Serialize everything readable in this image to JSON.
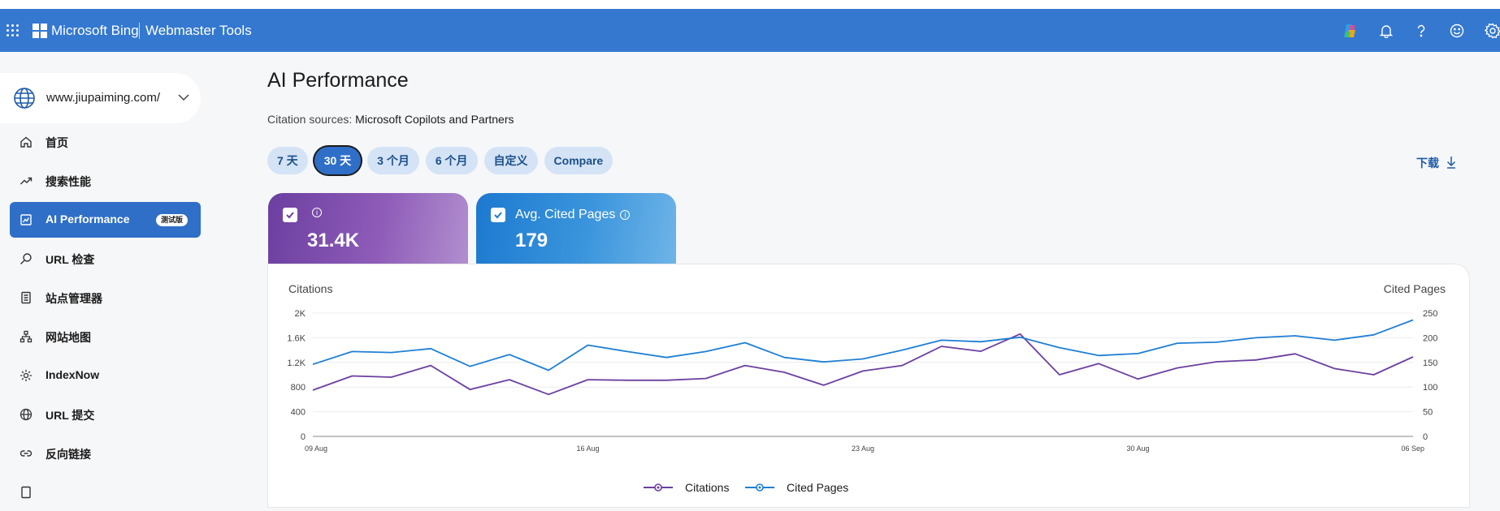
{
  "header": {
    "brand": "Microsoft Bing",
    "product": "Webmaster Tools",
    "icons": [
      "copilot-icon",
      "bell-icon",
      "help-icon",
      "feedback-icon",
      "gear-icon"
    ]
  },
  "sidebar": {
    "site": "www.jiupaiming.com/",
    "items": [
      {
        "label": "首页",
        "icon": "home-icon"
      },
      {
        "label": "搜索性能",
        "icon": "trend-icon"
      },
      {
        "label": "AI Performance",
        "icon": "ai-chart-icon",
        "badge": "测试版",
        "active": true
      },
      {
        "label": "URL 检查",
        "icon": "search-icon"
      },
      {
        "label": "站点管理器",
        "icon": "document-icon"
      },
      {
        "label": "网站地图",
        "icon": "sitemap-icon"
      },
      {
        "label": "IndexNow",
        "icon": "indexnow-icon"
      },
      {
        "label": "URL 提交",
        "icon": "globe-icon"
      },
      {
        "label": "反向链接",
        "icon": "link-icon"
      }
    ]
  },
  "main": {
    "title": "AI Performance",
    "citation_label": "Citation sources:",
    "citation_value": "Microsoft Copilots and Partners",
    "ranges": [
      {
        "label": "7 天",
        "active": false
      },
      {
        "label": "30 天",
        "active": true
      },
      {
        "label": "3 个月",
        "active": false
      },
      {
        "label": "6 个月",
        "active": false
      },
      {
        "label": "自定义",
        "active": false
      },
      {
        "label": "Compare",
        "active": false
      }
    ],
    "download_label": "下载",
    "cards": [
      {
        "label": "",
        "value": "31.4K",
        "checked": true
      },
      {
        "label": "Avg. Cited Pages",
        "value": "179",
        "checked": true
      }
    ]
  },
  "colors": {
    "header": "#3478d0",
    "citations": "#6b3fa0",
    "cited_pages": "#1f7fd4",
    "active_nav": "#2f6fc7"
  },
  "chart_data": {
    "type": "line",
    "left_axis_label": "Citations",
    "right_axis_label": "Cited Pages",
    "y_left_ticks": [
      "0",
      "400",
      "800",
      "1.2K",
      "1.6K",
      "2K"
    ],
    "y_right_ticks": [
      "0",
      "50",
      "100",
      "150",
      "200",
      "250"
    ],
    "ylim_left": [
      0,
      2000
    ],
    "ylim_right": [
      0,
      250
    ],
    "x_tick_labels": [
      "09 Aug",
      "16 Aug",
      "23 Aug",
      "30 Aug",
      "06 Sep"
    ],
    "x": [
      "09 Aug",
      "10 Aug",
      "11 Aug",
      "12 Aug",
      "13 Aug",
      "14 Aug",
      "15 Aug",
      "16 Aug",
      "17 Aug",
      "18 Aug",
      "19 Aug",
      "20 Aug",
      "21 Aug",
      "22 Aug",
      "23 Aug",
      "24 Aug",
      "25 Aug",
      "26 Aug",
      "27 Aug",
      "28 Aug",
      "29 Aug",
      "30 Aug",
      "31 Aug",
      "01 Sep",
      "02 Sep",
      "03 Sep",
      "04 Sep",
      "05 Sep",
      "06 Sep"
    ],
    "grid": true,
    "legend": "bottom",
    "series": [
      {
        "name": "Citations",
        "axis": "left",
        "values": [
          750,
          980,
          960,
          1150,
          760,
          920,
          680,
          920,
          910,
          910,
          940,
          1150,
          1040,
          830,
          1060,
          1150,
          1460,
          1380,
          1660,
          1000,
          1180,
          930,
          1110,
          1210,
          1240,
          1340,
          1100,
          1000,
          1290
        ]
      },
      {
        "name": "Cited Pages",
        "axis": "right",
        "values": [
          146,
          172,
          170,
          178,
          142,
          166,
          134,
          185,
          172,
          160,
          172,
          190,
          160,
          151,
          157,
          175,
          195,
          192,
          201,
          180,
          164,
          168,
          189,
          191,
          200,
          204,
          195,
          206,
          236
        ]
      }
    ]
  }
}
